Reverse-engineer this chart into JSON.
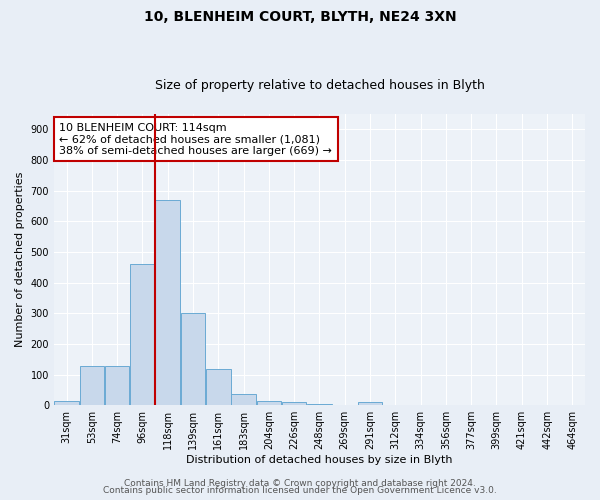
{
  "title1": "10, BLENHEIM COURT, BLYTH, NE24 3XN",
  "title2": "Size of property relative to detached houses in Blyth",
  "xlabel": "Distribution of detached houses by size in Blyth",
  "ylabel": "Number of detached properties",
  "bar_labels": [
    "31sqm",
    "53sqm",
    "74sqm",
    "96sqm",
    "118sqm",
    "139sqm",
    "161sqm",
    "183sqm",
    "204sqm",
    "226sqm",
    "248sqm",
    "269sqm",
    "291sqm",
    "312sqm",
    "334sqm",
    "356sqm",
    "377sqm",
    "399sqm",
    "421sqm",
    "442sqm",
    "464sqm"
  ],
  "bar_values": [
    15,
    127,
    127,
    462,
    669,
    302,
    118,
    35,
    15,
    10,
    5,
    0,
    10,
    0,
    0,
    0,
    0,
    0,
    0,
    0,
    0
  ],
  "bar_color": "#c8d8eb",
  "bar_edgecolor": "#6aaad4",
  "vline_x_index": 4,
  "vline_color": "#c00000",
  "annotation_line1": "10 BLENHEIM COURT: 114sqm",
  "annotation_line2": "← 62% of detached houses are smaller (1,081)",
  "annotation_line3": "38% of semi-detached houses are larger (669) →",
  "annotation_box_edgecolor": "#c00000",
  "annotation_box_facecolor": "white",
  "ylim": [
    0,
    950
  ],
  "yticks": [
    0,
    100,
    200,
    300,
    400,
    500,
    600,
    700,
    800,
    900
  ],
  "footer1": "Contains HM Land Registry data © Crown copyright and database right 2024.",
  "footer2": "Contains public sector information licensed under the Open Government Licence v3.0.",
  "bg_color": "#e8eef6",
  "plot_bg_color": "#edf2f8",
  "grid_color": "white",
  "title1_fontsize": 10,
  "title2_fontsize": 9,
  "xlabel_fontsize": 8,
  "ylabel_fontsize": 8,
  "tick_fontsize": 7,
  "annotation_fontsize": 8,
  "footer_fontsize": 6.5
}
